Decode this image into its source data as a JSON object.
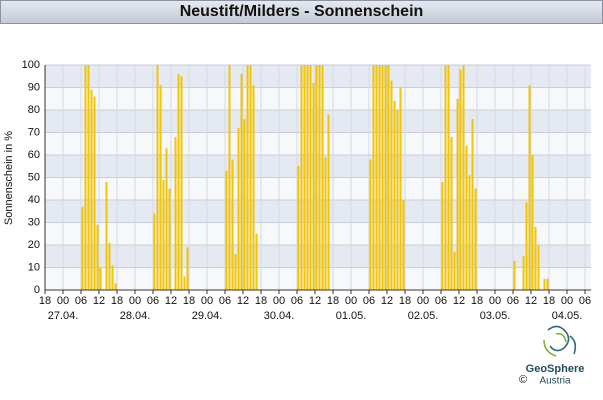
{
  "chart_data": {
    "type": "bar",
    "title": "Neustift/Milders - Sonnenschein",
    "y_label": "Sonnenschein in %",
    "color": "#f2c500",
    "grid": true,
    "x": [
      12,
      13,
      14,
      15,
      16,
      17,
      18,
      19,
      20,
      21,
      22,
      23,
      36,
      37,
      38,
      39,
      40,
      41,
      42,
      43,
      44,
      45,
      46,
      47,
      60,
      61,
      62,
      63,
      64,
      65,
      66,
      67,
      68,
      69,
      70,
      84,
      85,
      86,
      87,
      88,
      89,
      90,
      91,
      92,
      93,
      94,
      108,
      109,
      110,
      111,
      112,
      113,
      114,
      115,
      116,
      117,
      118,
      119,
      132,
      133,
      134,
      135,
      136,
      137,
      138,
      139,
      140,
      141,
      142,
      143,
      156,
      157,
      158,
      159,
      160,
      161,
      162,
      163,
      164,
      165,
      166,
      167
    ],
    "values": [
      37,
      100,
      100,
      89,
      86,
      29,
      10,
      0,
      48,
      21,
      11,
      3,
      34,
      100,
      91,
      49,
      63,
      45,
      0,
      68,
      96,
      95,
      6,
      19,
      53,
      100,
      58,
      16,
      72,
      96,
      76,
      100,
      100,
      91,
      25,
      55,
      100,
      100,
      100,
      100,
      92,
      100,
      100,
      100,
      59,
      78,
      58,
      100,
      100,
      100,
      100,
      100,
      100,
      93,
      84,
      80,
      90,
      40,
      48,
      100,
      100,
      68,
      17,
      85,
      98,
      100,
      64,
      51,
      76,
      45,
      13,
      0,
      0,
      15,
      39,
      91,
      60,
      28,
      20,
      0,
      5,
      5
    ],
    "xlim": [
      0,
      182
    ],
    "ylim": [
      0,
      100
    ],
    "yticks": [
      0,
      10,
      20,
      30,
      40,
      50,
      60,
      70,
      80,
      90,
      100
    ],
    "xticks": [
      {
        "value": 0,
        "label": "18"
      },
      {
        "value": 6,
        "label": "00"
      },
      {
        "value": 12,
        "label": "06"
      },
      {
        "value": 18,
        "label": "12"
      },
      {
        "value": 24,
        "label": "18"
      },
      {
        "value": 30,
        "label": "00"
      },
      {
        "value": 36,
        "label": "06"
      },
      {
        "value": 42,
        "label": "12"
      },
      {
        "value": 48,
        "label": "18"
      },
      {
        "value": 54,
        "label": "00"
      },
      {
        "value": 60,
        "label": "06"
      },
      {
        "value": 66,
        "label": "12"
      },
      {
        "value": 72,
        "label": "18"
      },
      {
        "value": 78,
        "label": "00"
      },
      {
        "value": 84,
        "label": "06"
      },
      {
        "value": 90,
        "label": "12"
      },
      {
        "value": 96,
        "label": "18"
      },
      {
        "value": 102,
        "label": "00"
      },
      {
        "value": 108,
        "label": "06"
      },
      {
        "value": 114,
        "label": "12"
      },
      {
        "value": 120,
        "label": "18"
      },
      {
        "value": 126,
        "label": "00"
      },
      {
        "value": 132,
        "label": "06"
      },
      {
        "value": 138,
        "label": "12"
      },
      {
        "value": 144,
        "label": "18"
      },
      {
        "value": 150,
        "label": "00"
      },
      {
        "value": 156,
        "label": "06"
      },
      {
        "value": 162,
        "label": "12"
      },
      {
        "value": 168,
        "label": "18"
      },
      {
        "value": 174,
        "label": "00"
      },
      {
        "value": 180,
        "label": "06"
      }
    ],
    "date_labels": [
      {
        "value": 6,
        "label": "27.04."
      },
      {
        "value": 30,
        "label": "28.04."
      },
      {
        "value": 54,
        "label": "29.04."
      },
      {
        "value": 78,
        "label": "30.04."
      },
      {
        "value": 102,
        "label": "01.05."
      },
      {
        "value": 126,
        "label": "02.05."
      },
      {
        "value": 150,
        "label": "03.05."
      },
      {
        "value": 174,
        "label": "04.05."
      }
    ]
  },
  "footer": {
    "logo_name": "GeoSphere",
    "logo_sub": "Austria",
    "copyright": "©"
  }
}
